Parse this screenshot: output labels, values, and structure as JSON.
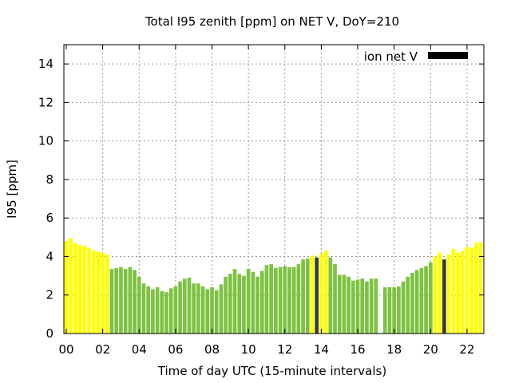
{
  "chart_data": {
    "type": "bar",
    "title": "Total I95 zenith [ppm] on NET V, DoY=210",
    "xlabel": "Time of day UTC (15-minute intervals)",
    "ylabel": "I95 [ppm]",
    "xlim": [
      0,
      22.75
    ],
    "ylim": [
      0,
      15
    ],
    "x_ticks": [
      {
        "value": 0,
        "label": "00"
      },
      {
        "value": 2,
        "label": "02"
      },
      {
        "value": 4,
        "label": "04"
      },
      {
        "value": 6,
        "label": "06"
      },
      {
        "value": 8,
        "label": "08"
      },
      {
        "value": 10,
        "label": "10"
      },
      {
        "value": 12,
        "label": "12"
      },
      {
        "value": 14,
        "label": "14"
      },
      {
        "value": 16,
        "label": "16"
      },
      {
        "value": 18,
        "label": "18"
      },
      {
        "value": 20,
        "label": "20"
      },
      {
        "value": 22,
        "label": "22"
      }
    ],
    "y_ticks": [
      0,
      2,
      4,
      6,
      8,
      10,
      12,
      14
    ],
    "grid": true,
    "legend": {
      "position": "top-right",
      "entries": [
        {
          "label": "ion net V",
          "color": "#000000"
        }
      ]
    },
    "colors": {
      "yellow": "#ffff00",
      "green": "#7dc242",
      "dark": "#3a3a3a",
      "grid": "#999999"
    },
    "series": [
      {
        "name": "ion net V",
        "points": [
          {
            "t": 0.0,
            "v": 4.8,
            "c": "yellow"
          },
          {
            "t": 0.25,
            "v": 4.95,
            "c": "yellow"
          },
          {
            "t": 0.5,
            "v": 4.7,
            "c": "yellow"
          },
          {
            "t": 0.75,
            "v": 4.6,
            "c": "yellow"
          },
          {
            "t": 1.0,
            "v": 4.55,
            "c": "yellow"
          },
          {
            "t": 1.25,
            "v": 4.45,
            "c": "yellow"
          },
          {
            "t": 1.5,
            "v": 4.3,
            "c": "yellow"
          },
          {
            "t": 1.75,
            "v": 4.25,
            "c": "yellow"
          },
          {
            "t": 2.0,
            "v": 4.2,
            "c": "yellow"
          },
          {
            "t": 2.25,
            "v": 4.1,
            "c": "yellow"
          },
          {
            "t": 2.5,
            "v": 3.35,
            "c": "green"
          },
          {
            "t": 2.75,
            "v": 3.4,
            "c": "green"
          },
          {
            "t": 3.0,
            "v": 3.45,
            "c": "green"
          },
          {
            "t": 3.25,
            "v": 3.35,
            "c": "green"
          },
          {
            "t": 3.5,
            "v": 3.45,
            "c": "green"
          },
          {
            "t": 3.75,
            "v": 3.3,
            "c": "green"
          },
          {
            "t": 4.0,
            "v": 2.95,
            "c": "green"
          },
          {
            "t": 4.25,
            "v": 2.6,
            "c": "green"
          },
          {
            "t": 4.5,
            "v": 2.45,
            "c": "green"
          },
          {
            "t": 4.75,
            "v": 2.3,
            "c": "green"
          },
          {
            "t": 5.0,
            "v": 2.4,
            "c": "green"
          },
          {
            "t": 5.25,
            "v": 2.2,
            "c": "green"
          },
          {
            "t": 5.5,
            "v": 2.15,
            "c": "green"
          },
          {
            "t": 5.75,
            "v": 2.35,
            "c": "green"
          },
          {
            "t": 6.0,
            "v": 2.45,
            "c": "green"
          },
          {
            "t": 6.25,
            "v": 2.7,
            "c": "green"
          },
          {
            "t": 6.5,
            "v": 2.85,
            "c": "green"
          },
          {
            "t": 6.75,
            "v": 2.9,
            "c": "green"
          },
          {
            "t": 7.0,
            "v": 2.6,
            "c": "green"
          },
          {
            "t": 7.25,
            "v": 2.6,
            "c": "green"
          },
          {
            "t": 7.5,
            "v": 2.45,
            "c": "green"
          },
          {
            "t": 7.75,
            "v": 2.3,
            "c": "green"
          },
          {
            "t": 8.0,
            "v": 2.4,
            "c": "green"
          },
          {
            "t": 8.25,
            "v": 2.25,
            "c": "green"
          },
          {
            "t": 8.5,
            "v": 2.55,
            "c": "green"
          },
          {
            "t": 8.75,
            "v": 2.95,
            "c": "green"
          },
          {
            "t": 9.0,
            "v": 3.1,
            "c": "green"
          },
          {
            "t": 9.25,
            "v": 3.35,
            "c": "green"
          },
          {
            "t": 9.5,
            "v": 3.1,
            "c": "green"
          },
          {
            "t": 9.75,
            "v": 3.0,
            "c": "green"
          },
          {
            "t": 10.0,
            "v": 3.35,
            "c": "green"
          },
          {
            "t": 10.25,
            "v": 3.2,
            "c": "green"
          },
          {
            "t": 10.5,
            "v": 2.95,
            "c": "green"
          },
          {
            "t": 10.75,
            "v": 3.25,
            "c": "green"
          },
          {
            "t": 11.0,
            "v": 3.55,
            "c": "green"
          },
          {
            "t": 11.25,
            "v": 3.6,
            "c": "green"
          },
          {
            "t": 11.5,
            "v": 3.4,
            "c": "green"
          },
          {
            "t": 11.75,
            "v": 3.45,
            "c": "green"
          },
          {
            "t": 12.0,
            "v": 3.5,
            "c": "green"
          },
          {
            "t": 12.25,
            "v": 3.45,
            "c": "green"
          },
          {
            "t": 12.5,
            "v": 3.45,
            "c": "green"
          },
          {
            "t": 12.75,
            "v": 3.6,
            "c": "green"
          },
          {
            "t": 13.0,
            "v": 3.85,
            "c": "green"
          },
          {
            "t": 13.25,
            "v": 3.9,
            "c": "green"
          },
          {
            "t": 13.5,
            "v": 4.05,
            "c": "yellow"
          },
          {
            "t": 13.75,
            "v": 3.95,
            "c": "dark"
          },
          {
            "t": 14.0,
            "v": 4.15,
            "c": "yellow"
          },
          {
            "t": 14.25,
            "v": 4.3,
            "c": "yellow"
          },
          {
            "t": 14.5,
            "v": 3.95,
            "c": "green"
          },
          {
            "t": 14.75,
            "v": 3.6,
            "c": "green"
          },
          {
            "t": 15.0,
            "v": 3.05,
            "c": "green"
          },
          {
            "t": 15.25,
            "v": 3.05,
            "c": "green"
          },
          {
            "t": 15.5,
            "v": 2.95,
            "c": "green"
          },
          {
            "t": 15.75,
            "v": 2.75,
            "c": "green"
          },
          {
            "t": 16.0,
            "v": 2.8,
            "c": "green"
          },
          {
            "t": 16.25,
            "v": 2.85,
            "c": "green"
          },
          {
            "t": 16.5,
            "v": 2.7,
            "c": "green"
          },
          {
            "t": 16.75,
            "v": 2.85,
            "c": "green"
          },
          {
            "t": 17.0,
            "v": 2.85,
            "c": "green"
          },
          {
            "t": 17.5,
            "v": 2.4,
            "c": "green"
          },
          {
            "t": 17.75,
            "v": 2.4,
            "c": "green"
          },
          {
            "t": 18.0,
            "v": 2.4,
            "c": "green"
          },
          {
            "t": 18.25,
            "v": 2.45,
            "c": "green"
          },
          {
            "t": 18.5,
            "v": 2.7,
            "c": "green"
          },
          {
            "t": 18.75,
            "v": 2.95,
            "c": "green"
          },
          {
            "t": 19.0,
            "v": 3.15,
            "c": "green"
          },
          {
            "t": 19.25,
            "v": 3.3,
            "c": "green"
          },
          {
            "t": 19.5,
            "v": 3.4,
            "c": "green"
          },
          {
            "t": 19.75,
            "v": 3.5,
            "c": "green"
          },
          {
            "t": 20.0,
            "v": 3.7,
            "c": "green"
          },
          {
            "t": 20.25,
            "v": 4.0,
            "c": "yellow"
          },
          {
            "t": 20.5,
            "v": 4.2,
            "c": "yellow"
          },
          {
            "t": 20.75,
            "v": 3.85,
            "c": "dark"
          },
          {
            "t": 21.0,
            "v": 4.1,
            "c": "yellow"
          },
          {
            "t": 21.25,
            "v": 4.4,
            "c": "yellow"
          },
          {
            "t": 21.5,
            "v": 4.2,
            "c": "yellow"
          },
          {
            "t": 21.75,
            "v": 4.3,
            "c": "yellow"
          },
          {
            "t": 22.0,
            "v": 4.5,
            "c": "yellow"
          },
          {
            "t": 22.25,
            "v": 4.45,
            "c": "yellow"
          },
          {
            "t": 22.5,
            "v": 4.7,
            "c": "yellow"
          },
          {
            "t": 22.75,
            "v": 4.75,
            "c": "yellow"
          }
        ]
      }
    ]
  }
}
